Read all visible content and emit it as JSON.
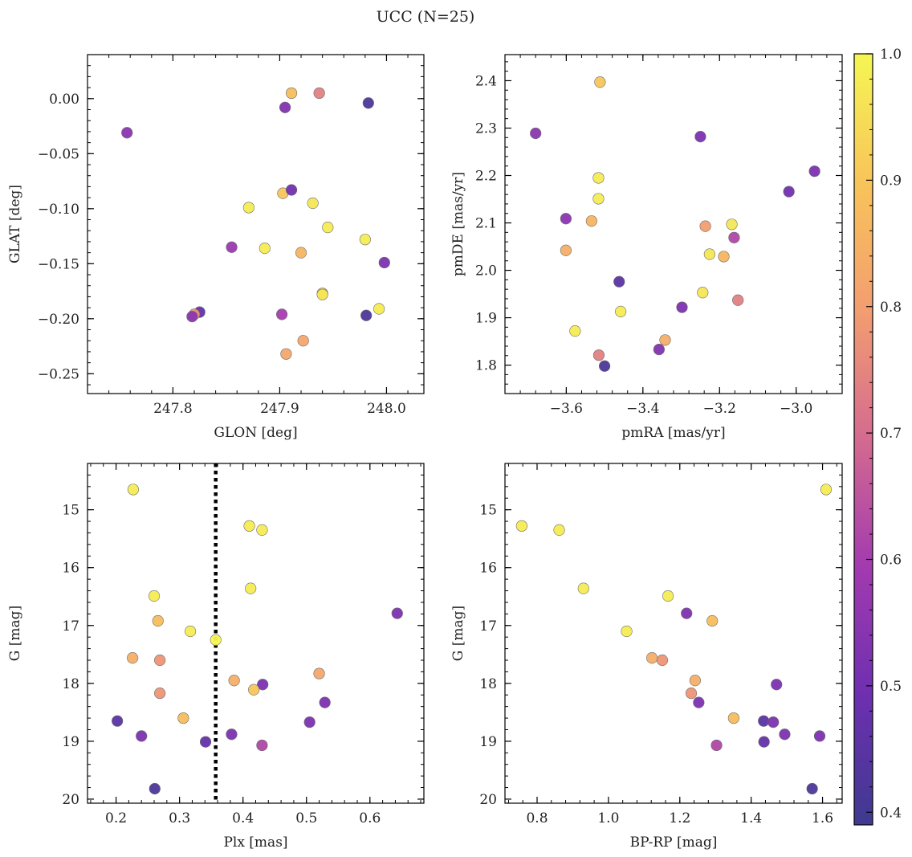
{
  "figure_title": "UCC (N=25)",
  "chart_data": [
    {
      "type": "scatter",
      "panel": "glon-glat",
      "xlabel": "GLON [deg]",
      "ylabel": "GLAT [deg]",
      "xlim": [
        247.72,
        248.035
      ],
      "ylim": [
        -0.268,
        0.04
      ],
      "xticks": [
        247.8,
        247.9,
        248.0
      ],
      "xtick_labels": [
        "247.8",
        "247.9",
        "248.0"
      ],
      "yticks": [
        0.0,
        -0.05,
        -0.1,
        -0.15,
        -0.2,
        -0.25
      ],
      "ytick_labels": [
        "0.00",
        "−0.05",
        "−0.10",
        "−0.15",
        "−0.20",
        "−0.25"
      ],
      "points": [
        {
          "x": 247.757,
          "y": -0.031,
          "c": 0.55
        },
        {
          "x": 247.905,
          "y": -0.008,
          "c": 0.53
        },
        {
          "x": 247.911,
          "y": 0.005,
          "c": 0.88
        },
        {
          "x": 247.937,
          "y": 0.005,
          "c": 0.74
        },
        {
          "x": 247.983,
          "y": -0.004,
          "c": 0.42
        },
        {
          "x": 247.903,
          "y": -0.086,
          "c": 0.9
        },
        {
          "x": 247.911,
          "y": -0.083,
          "c": 0.5
        },
        {
          "x": 247.931,
          "y": -0.095,
          "c": 0.97
        },
        {
          "x": 247.871,
          "y": -0.099,
          "c": 0.98
        },
        {
          "x": 247.945,
          "y": -0.117,
          "c": 0.98
        },
        {
          "x": 247.98,
          "y": -0.128,
          "c": 0.98
        },
        {
          "x": 247.855,
          "y": -0.135,
          "c": 0.58
        },
        {
          "x": 247.886,
          "y": -0.136,
          "c": 0.98
        },
        {
          "x": 247.92,
          "y": -0.14,
          "c": 0.86
        },
        {
          "x": 247.998,
          "y": -0.149,
          "c": 0.52
        },
        {
          "x": 247.94,
          "y": -0.177,
          "c": 0.94
        },
        {
          "x": 247.94,
          "y": -0.178,
          "c": 0.97
        },
        {
          "x": 247.993,
          "y": -0.191,
          "c": 0.98
        },
        {
          "x": 247.825,
          "y": -0.194,
          "c": 0.47
        },
        {
          "x": 247.902,
          "y": -0.196,
          "c": 0.6
        },
        {
          "x": 247.82,
          "y": -0.196,
          "c": 0.78
        },
        {
          "x": 247.818,
          "y": -0.198,
          "c": 0.55
        },
        {
          "x": 247.981,
          "y": -0.197,
          "c": 0.42
        },
        {
          "x": 247.922,
          "y": -0.22,
          "c": 0.82
        },
        {
          "x": 247.906,
          "y": -0.232,
          "c": 0.82
        }
      ]
    },
    {
      "type": "scatter",
      "panel": "pmra-pmde",
      "xlabel": "pmRA [mas/yr]",
      "ylabel": "pmDE [mas/yr]",
      "xlim": [
        -3.76,
        -2.88
      ],
      "ylim": [
        1.74,
        2.455
      ],
      "xticks": [
        -3.6,
        -3.4,
        -3.2,
        -3.0
      ],
      "xtick_labels": [
        "−3.6",
        "−3.4",
        "−3.2",
        "−3.0"
      ],
      "yticks": [
        1.8,
        1.9,
        2.0,
        2.1,
        2.2,
        2.3,
        2.4
      ],
      "ytick_labels": [
        "1.8",
        "1.9",
        "2.0",
        "2.1",
        "2.2",
        "2.3",
        "2.4"
      ],
      "points": [
        {
          "x": -3.512,
          "y": 2.397,
          "c": 0.9
        },
        {
          "x": -3.68,
          "y": 2.289,
          "c": 0.55
        },
        {
          "x": -3.25,
          "y": 2.282,
          "c": 0.52
        },
        {
          "x": -2.952,
          "y": 2.209,
          "c": 0.52
        },
        {
          "x": -3.516,
          "y": 2.195,
          "c": 0.98
        },
        {
          "x": -3.019,
          "y": 2.166,
          "c": 0.5
        },
        {
          "x": -3.516,
          "y": 2.151,
          "c": 0.98
        },
        {
          "x": -3.601,
          "y": 2.109,
          "c": 0.55
        },
        {
          "x": -3.534,
          "y": 2.104,
          "c": 0.86
        },
        {
          "x": -3.237,
          "y": 2.093,
          "c": 0.8
        },
        {
          "x": -3.168,
          "y": 2.097,
          "c": 0.97
        },
        {
          "x": -3.162,
          "y": 2.069,
          "c": 0.62
        },
        {
          "x": -3.601,
          "y": 2.042,
          "c": 0.84
        },
        {
          "x": -3.226,
          "y": 2.034,
          "c": 0.97
        },
        {
          "x": -3.189,
          "y": 2.029,
          "c": 0.86
        },
        {
          "x": -3.462,
          "y": 1.976,
          "c": 0.45
        },
        {
          "x": -3.244,
          "y": 1.953,
          "c": 0.97
        },
        {
          "x": -3.152,
          "y": 1.937,
          "c": 0.74
        },
        {
          "x": -3.298,
          "y": 1.922,
          "c": 0.52
        },
        {
          "x": -3.458,
          "y": 1.913,
          "c": 0.98
        },
        {
          "x": -3.577,
          "y": 1.872,
          "c": 0.98
        },
        {
          "x": -3.342,
          "y": 1.853,
          "c": 0.84
        },
        {
          "x": -3.358,
          "y": 1.833,
          "c": 0.53
        },
        {
          "x": -3.515,
          "y": 1.821,
          "c": 0.74
        },
        {
          "x": -3.5,
          "y": 1.798,
          "c": 0.42
        }
      ]
    },
    {
      "type": "scatter",
      "panel": "plx-g",
      "xlabel": "Plx [mas]",
      "ylabel": "G [mag]",
      "xlim": [
        0.155,
        0.685
      ],
      "ylim": [
        20.07,
        14.2
      ],
      "y_inverted": true,
      "vline_x": 0.357,
      "vline_style": "dotted",
      "xticks": [
        0.2,
        0.3,
        0.4,
        0.5,
        0.6
      ],
      "xtick_labels": [
        "0.2",
        "0.3",
        "0.4",
        "0.5",
        "0.6"
      ],
      "yticks": [
        15,
        16,
        17,
        18,
        19,
        20
      ],
      "ytick_labels": [
        "15",
        "16",
        "17",
        "18",
        "19",
        "20"
      ],
      "points": [
        {
          "x": 0.227,
          "y": 14.65,
          "c": 0.98
        },
        {
          "x": 0.41,
          "y": 15.28,
          "c": 0.98
        },
        {
          "x": 0.43,
          "y": 15.35,
          "c": 0.98
        },
        {
          "x": 0.412,
          "y": 16.36,
          "c": 0.98
        },
        {
          "x": 0.26,
          "y": 16.49,
          "c": 0.98
        },
        {
          "x": 0.643,
          "y": 16.79,
          "c": 0.52
        },
        {
          "x": 0.266,
          "y": 16.92,
          "c": 0.88
        },
        {
          "x": 0.317,
          "y": 17.1,
          "c": 0.98
        },
        {
          "x": 0.357,
          "y": 17.25,
          "c": 1.0
        },
        {
          "x": 0.226,
          "y": 17.56,
          "c": 0.84
        },
        {
          "x": 0.269,
          "y": 17.6,
          "c": 0.78
        },
        {
          "x": 0.52,
          "y": 17.83,
          "c": 0.82
        },
        {
          "x": 0.386,
          "y": 17.95,
          "c": 0.84
        },
        {
          "x": 0.431,
          "y": 18.02,
          "c": 0.52
        },
        {
          "x": 0.417,
          "y": 18.11,
          "c": 0.9
        },
        {
          "x": 0.269,
          "y": 18.17,
          "c": 0.78
        },
        {
          "x": 0.529,
          "y": 18.33,
          "c": 0.52
        },
        {
          "x": 0.306,
          "y": 18.6,
          "c": 0.88
        },
        {
          "x": 0.202,
          "y": 18.65,
          "c": 0.45
        },
        {
          "x": 0.505,
          "y": 18.67,
          "c": 0.52
        },
        {
          "x": 0.382,
          "y": 18.88,
          "c": 0.52
        },
        {
          "x": 0.24,
          "y": 18.91,
          "c": 0.52
        },
        {
          "x": 0.341,
          "y": 19.01,
          "c": 0.47
        },
        {
          "x": 0.43,
          "y": 19.07,
          "c": 0.62
        },
        {
          "x": 0.261,
          "y": 19.82,
          "c": 0.42
        }
      ]
    },
    {
      "type": "scatter",
      "panel": "bprp-g",
      "xlabel": "BP-RP [mag]",
      "ylabel": "G [mag]",
      "xlim": [
        0.71,
        1.655
      ],
      "ylim": [
        20.07,
        14.2
      ],
      "y_inverted": true,
      "xticks": [
        0.8,
        1.0,
        1.2,
        1.4,
        1.6
      ],
      "xtick_labels": [
        "0.8",
        "1.0",
        "1.2",
        "1.4",
        "1.6"
      ],
      "yticks": [
        15,
        16,
        17,
        18,
        19,
        20
      ],
      "ytick_labels": [
        "15",
        "16",
        "17",
        "18",
        "19",
        "20"
      ],
      "points": [
        {
          "x": 1.61,
          "y": 14.65,
          "c": 0.98
        },
        {
          "x": 0.757,
          "y": 15.28,
          "c": 0.98
        },
        {
          "x": 0.862,
          "y": 15.35,
          "c": 0.98
        },
        {
          "x": 0.93,
          "y": 16.36,
          "c": 0.98
        },
        {
          "x": 1.167,
          "y": 16.49,
          "c": 0.98
        },
        {
          "x": 1.219,
          "y": 16.79,
          "c": 0.52
        },
        {
          "x": 1.291,
          "y": 16.92,
          "c": 0.88
        },
        {
          "x": 1.051,
          "y": 17.1,
          "c": 0.98
        },
        {
          "x": 1.122,
          "y": 17.56,
          "c": 0.84
        },
        {
          "x": 1.151,
          "y": 17.6,
          "c": 0.78
        },
        {
          "x": 1.243,
          "y": 17.95,
          "c": 0.84
        },
        {
          "x": 1.471,
          "y": 18.02,
          "c": 0.52
        },
        {
          "x": 1.232,
          "y": 18.17,
          "c": 0.78
        },
        {
          "x": 1.253,
          "y": 18.33,
          "c": 0.52
        },
        {
          "x": 1.351,
          "y": 18.6,
          "c": 0.88
        },
        {
          "x": 1.435,
          "y": 18.65,
          "c": 0.45
        },
        {
          "x": 1.462,
          "y": 18.67,
          "c": 0.52
        },
        {
          "x": 1.494,
          "y": 18.88,
          "c": 0.52
        },
        {
          "x": 1.592,
          "y": 18.91,
          "c": 0.52
        },
        {
          "x": 1.436,
          "y": 19.01,
          "c": 0.47
        },
        {
          "x": 1.303,
          "y": 19.07,
          "c": 0.62
        },
        {
          "x": 1.571,
          "y": 19.82,
          "c": 0.42
        }
      ]
    }
  ],
  "colorbar": {
    "colormap": "plasma",
    "min": 0.39,
    "max": 1.0,
    "ticks": [
      0.4,
      0.5,
      0.6,
      0.7,
      0.8,
      0.9,
      1.0
    ],
    "tick_labels": [
      "0.4",
      "0.5",
      "0.6",
      "0.7",
      "0.8",
      "0.9",
      "1.0"
    ],
    "stops": [
      "#3f3a90",
      "#6d2fb0",
      "#a23ab0",
      "#d46a90",
      "#f39d70",
      "#f8c45a",
      "#f5f653"
    ]
  }
}
